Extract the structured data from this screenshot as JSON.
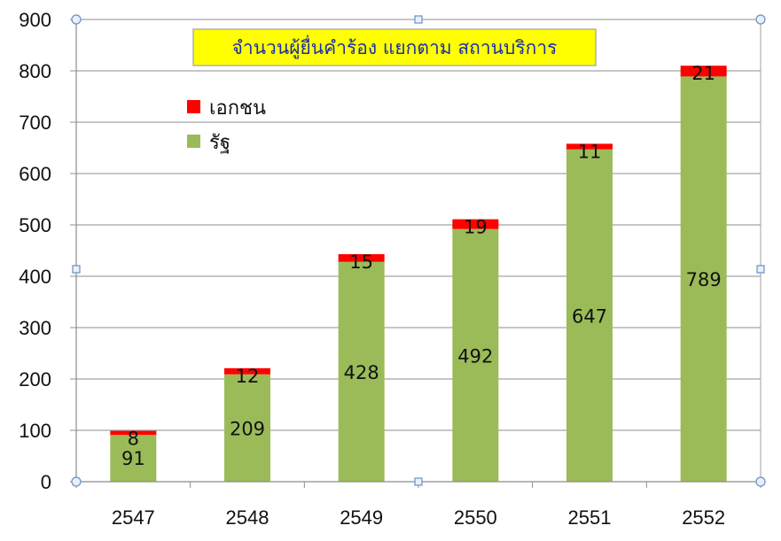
{
  "chart_data": {
    "type": "bar",
    "stacked": true,
    "title": "จำนวนผู้ยื่นคำร้อง แยกตาม สถานบริการ",
    "categories": [
      "2547",
      "2548",
      "2549",
      "2550",
      "2551",
      "2552"
    ],
    "series": [
      {
        "name": "รัฐ",
        "color": "#9bbb59",
        "values": [
          91,
          209,
          428,
          492,
          647,
          789
        ]
      },
      {
        "name": "เอกชน",
        "color": "#ff0000",
        "values": [
          8,
          12,
          15,
          19,
          11,
          21
        ]
      }
    ],
    "yticks": [
      "0",
      "100",
      "200",
      "300",
      "400",
      "500",
      "600",
      "700",
      "800",
      "900"
    ],
    "ylim": [
      0,
      900
    ],
    "grid": true,
    "legend": "top-left",
    "title_background": "#ffff00",
    "title_border": "#b0b0b0"
  }
}
